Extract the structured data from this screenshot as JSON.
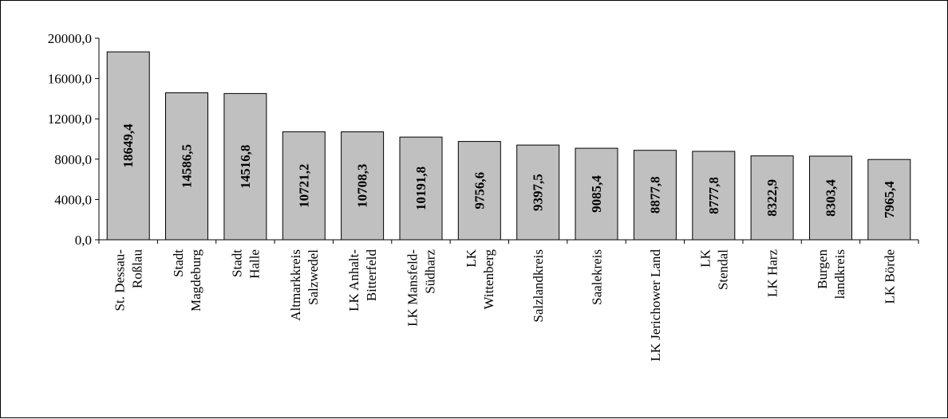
{
  "chart_data": {
    "type": "bar",
    "title": "",
    "xlabel": "",
    "ylabel": "",
    "ylim": [
      0,
      20000
    ],
    "yticks": [
      0,
      4000,
      8000,
      12000,
      16000,
      20000
    ],
    "ytick_labels": [
      "0,0",
      "4000,0",
      "8000,0",
      "12000,0",
      "16000,0",
      "20000,0"
    ],
    "grid": false,
    "legend": "none",
    "bar_color": "#c0c0c0",
    "categories": [
      [
        "St. Dessau-",
        "Roßlau"
      ],
      [
        "Stadt",
        "Magdeburg"
      ],
      [
        "Stadt",
        "Halle"
      ],
      [
        "Altmarkkreis",
        "Salzwedel"
      ],
      [
        "LK Anhalt-",
        "Bitterfeld"
      ],
      [
        "LK Mansfeld-",
        "Südharz"
      ],
      [
        "LK",
        "Wittenberg"
      ],
      [
        "Salzlandkreis"
      ],
      [
        "Saalekreis"
      ],
      [
        "LK Jerichower Land"
      ],
      [
        "LK",
        "Stendal"
      ],
      [
        "LK Harz"
      ],
      [
        "Burgen",
        "landkreis"
      ],
      [
        "LK Börde"
      ]
    ],
    "values": [
      18649.4,
      14586.5,
      14516.8,
      10721.2,
      10708.3,
      10191.8,
      9756.6,
      9397.5,
      9085.4,
      8877.8,
      8777.8,
      8322.9,
      8303.4,
      7965.4
    ],
    "value_labels": [
      "18649,4",
      "14586,5",
      "14516,8",
      "10721,2",
      "10708,3",
      "10191,8",
      "9756,6",
      "9397,5",
      "9085,4",
      "8877,8",
      "8777,8",
      "8322,9",
      "8303,4",
      "7965,4"
    ]
  }
}
